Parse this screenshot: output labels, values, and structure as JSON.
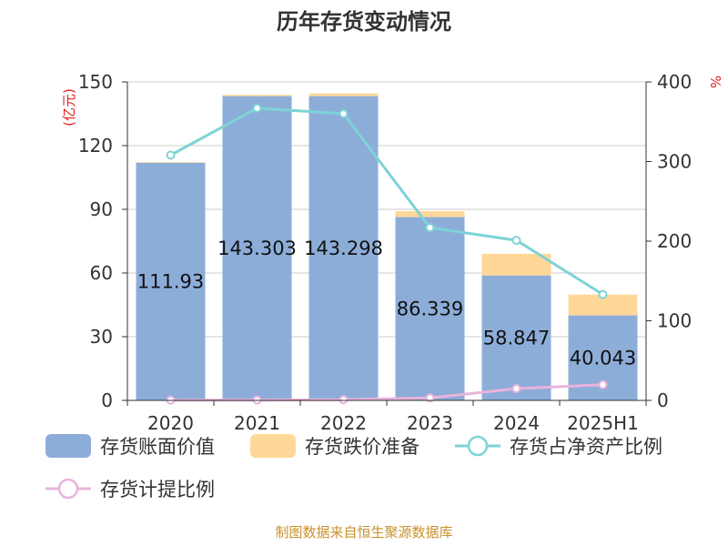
{
  "chart_data": {
    "title": "历年存货变动情况",
    "type": "bar",
    "categories": [
      "2020",
      "2021",
      "2022",
      "2023",
      "2024",
      "2025H1"
    ],
    "y_left": {
      "unit": "(亿元)",
      "ticks": [
        "0",
        "30",
        "60",
        "90",
        "120",
        "150"
      ],
      "range": [
        0,
        150
      ]
    },
    "y_right": {
      "unit": "%",
      "ticks": [
        "0",
        "100",
        "200",
        "300",
        "400"
      ],
      "range": [
        0,
        400
      ]
    },
    "series": [
      {
        "name": "存货账面价值",
        "type": "bar",
        "axis": "left",
        "color": "#8dadd9",
        "values": [
          111.93,
          143.303,
          143.298,
          86.339,
          58.847,
          40.043
        ],
        "labels": [
          "111.93",
          "143.303",
          "143.298",
          "86.339",
          "58.847",
          "40.043"
        ]
      },
      {
        "name": "存货跌价准备",
        "type": "bar",
        "stacked": true,
        "axis": "left",
        "color": "#ffd899",
        "values": [
          0.3,
          0.6,
          1.3,
          2.8,
          10.2,
          9.8
        ]
      },
      {
        "name": "存货占净资产比例",
        "type": "line",
        "axis": "right",
        "color": "#7ed3d6",
        "values": [
          308,
          367,
          360,
          217,
          201,
          133
        ]
      },
      {
        "name": "存货计提比例",
        "type": "line",
        "axis": "right",
        "color": "#e8b4dc",
        "values": [
          0.3,
          0.4,
          0.9,
          3.1,
          14.8,
          19.7
        ]
      }
    ],
    "grid": true
  },
  "footer": {
    "source": "制图数据来自恒生聚源数据库"
  }
}
